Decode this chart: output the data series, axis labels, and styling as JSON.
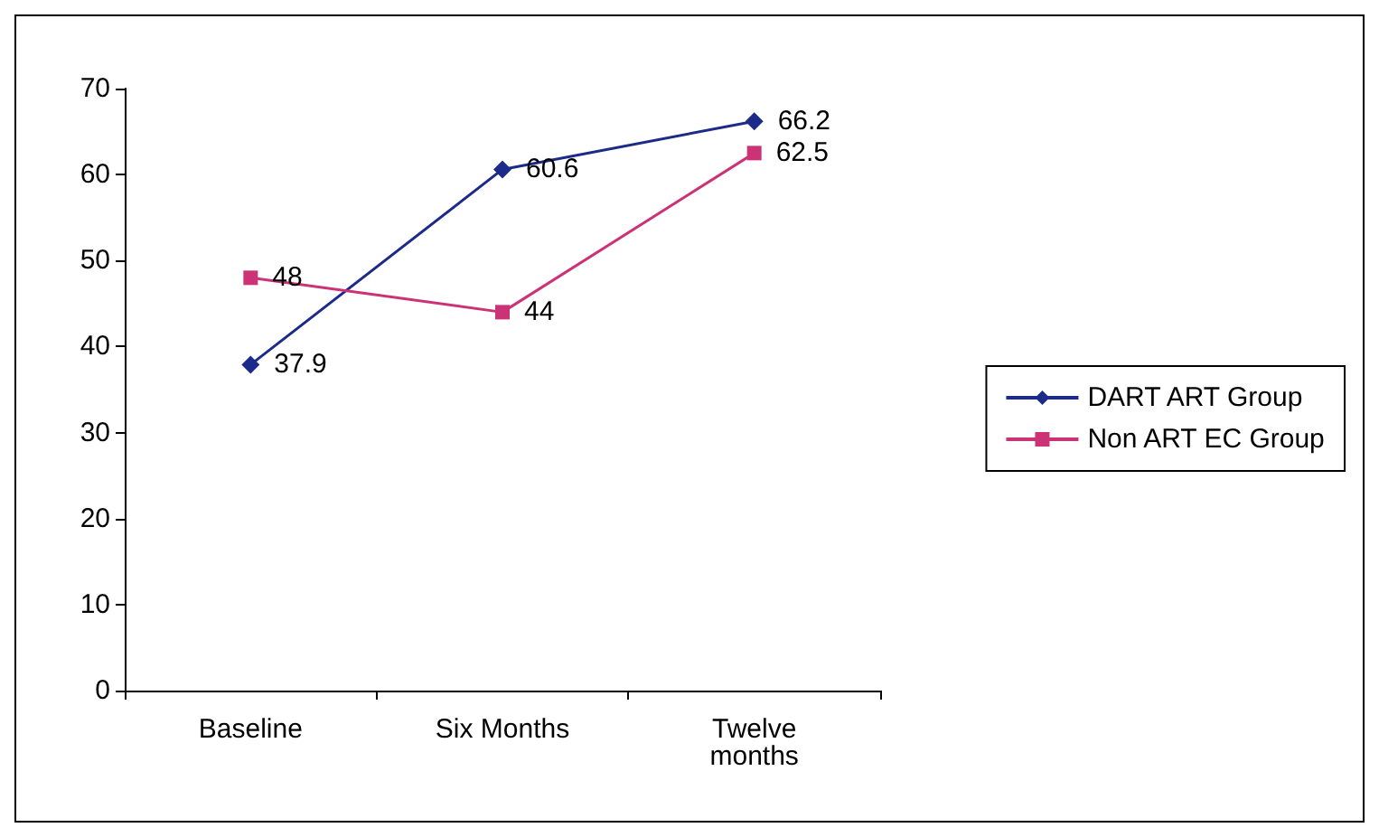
{
  "chart_data": {
    "type": "line",
    "categories": [
      "Baseline",
      "Six Months",
      "Twelve\nmonths"
    ],
    "series": [
      {
        "name": "DART ART Group",
        "color": "#1c2a8a",
        "marker": "diamond",
        "values": [
          37.9,
          60.6,
          66.2
        ]
      },
      {
        "name": "Non ART EC Group",
        "color": "#cc3377",
        "marker": "square",
        "values": [
          48,
          44,
          62.5
        ]
      }
    ],
    "ylim": [
      0,
      70
    ],
    "yticks": [
      0,
      10,
      20,
      30,
      40,
      50,
      60,
      70
    ],
    "grid": false,
    "legend": "right",
    "data_labels": true,
    "line_style": "solid"
  }
}
